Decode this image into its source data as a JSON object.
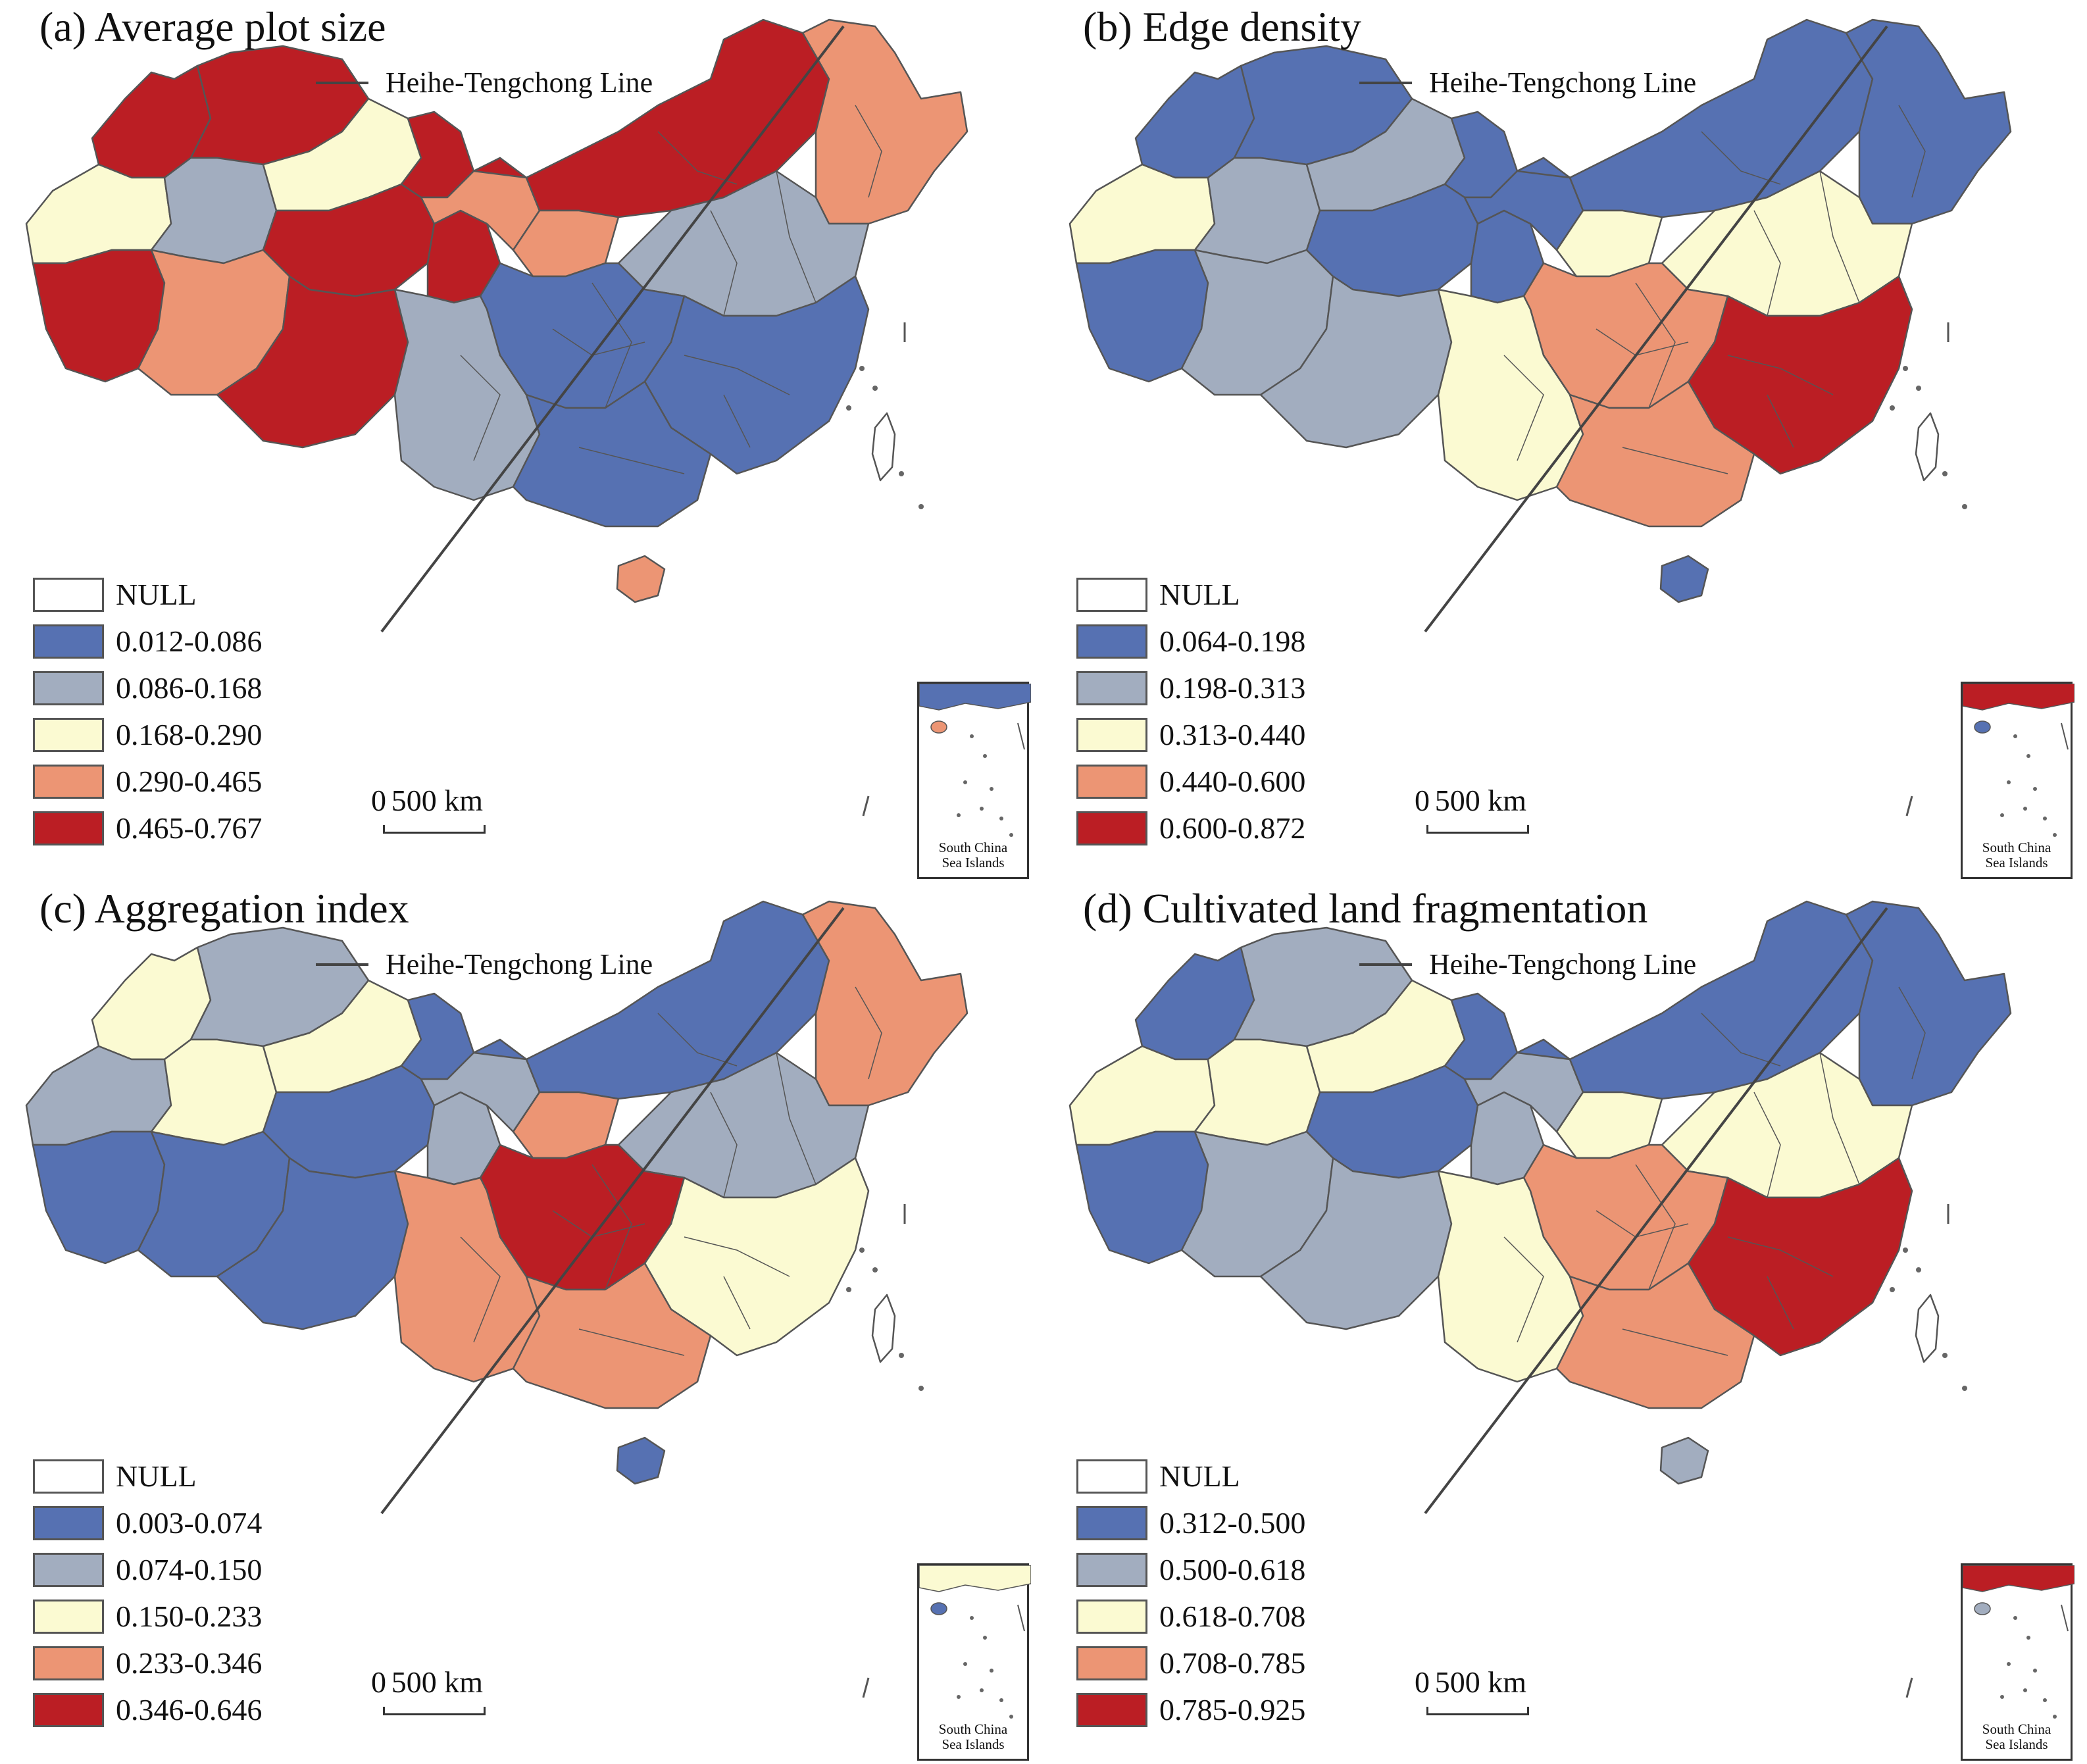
{
  "colors": {
    "null": "#ffffff",
    "class1": "#5671b2",
    "class2": "#a2adbf",
    "class3": "#fbfad2",
    "class4": "#ec9574",
    "class5": "#bb1e24",
    "border": "#555555",
    "line": "#444444"
  },
  "common": {
    "line_label": "Heihe-Tengchong Line",
    "scale_zero": "0",
    "scale_500": "500 km",
    "inset_label_line1": "South China",
    "inset_label_line2": "Sea Islands"
  },
  "panels": [
    {
      "title": "(a) Average plot size",
      "legend": [
        "NULL",
        "0.012-0.086",
        "0.086-0.168",
        "0.168-0.290",
        "0.290-0.465",
        "0.465-0.767"
      ],
      "regions": {
        "nw_tip": 5,
        "north_band": 5,
        "west_low": 3,
        "west_mid": 2,
        "central_nw": 3,
        "tarim_east": 5,
        "tibet_west": 5,
        "tibet_mid": 4,
        "qinghai": 5,
        "qinghai_east": 5,
        "tibet_se": 5,
        "gansu": 4,
        "inner_mongolia": 5,
        "ningxia": 4,
        "northeast": 4,
        "north_plain": 2,
        "sichuan_east": 1,
        "southeast": 1,
        "yunnan": 2,
        "guangxi": 1,
        "hainan": 4,
        "taiwan": 0
      }
    },
    {
      "title": "(b) Edge density",
      "legend": [
        "NULL",
        "0.064-0.198",
        "0.198-0.313",
        "0.313-0.440",
        "0.440-0.600",
        "0.600-0.872"
      ],
      "regions": {
        "nw_tip": 1,
        "north_band": 1,
        "west_low": 3,
        "west_mid": 2,
        "central_nw": 2,
        "tarim_east": 1,
        "tibet_west": 1,
        "tibet_mid": 2,
        "qinghai": 1,
        "qinghai_east": 1,
        "tibet_se": 2,
        "gansu": 1,
        "inner_mongolia": 1,
        "ningxia": 3,
        "northeast": 1,
        "north_plain": 3,
        "sichuan_east": 4,
        "southeast": 5,
        "yunnan": 3,
        "guangxi": 4,
        "hainan": 1,
        "taiwan": 0
      }
    },
    {
      "title": "(c) Aggregation index",
      "legend": [
        "NULL",
        "0.003-0.074",
        "0.074-0.150",
        "0.150-0.233",
        "0.233-0.346",
        "0.346-0.646"
      ],
      "regions": {
        "nw_tip": 3,
        "north_band": 2,
        "west_low": 2,
        "west_mid": 3,
        "central_nw": 3,
        "tarim_east": 1,
        "tibet_west": 1,
        "tibet_mid": 1,
        "qinghai": 1,
        "qinghai_east": 2,
        "tibet_se": 1,
        "gansu": 2,
        "inner_mongolia": 1,
        "ningxia": 4,
        "northeast": 4,
        "north_plain": 2,
        "sichuan_east": 5,
        "southeast": 3,
        "yunnan": 4,
        "guangxi": 4,
        "hainan": 1,
        "taiwan": 0
      }
    },
    {
      "title": "(d) Cultivated land fragmentation",
      "legend": [
        "NULL",
        "0.312-0.500",
        "0.500-0.618",
        "0.618-0.708",
        "0.708-0.785",
        "0.785-0.925"
      ],
      "regions": {
        "nw_tip": 1,
        "north_band": 2,
        "west_low": 3,
        "west_mid": 3,
        "central_nw": 3,
        "tarim_east": 1,
        "tibet_west": 1,
        "tibet_mid": 2,
        "qinghai": 1,
        "qinghai_east": 2,
        "tibet_se": 2,
        "gansu": 2,
        "inner_mongolia": 1,
        "ningxia": 3,
        "northeast": 1,
        "north_plain": 3,
        "sichuan_east": 4,
        "southeast": 5,
        "yunnan": 3,
        "guangxi": 4,
        "hainan": 2,
        "taiwan": 0
      }
    }
  ]
}
